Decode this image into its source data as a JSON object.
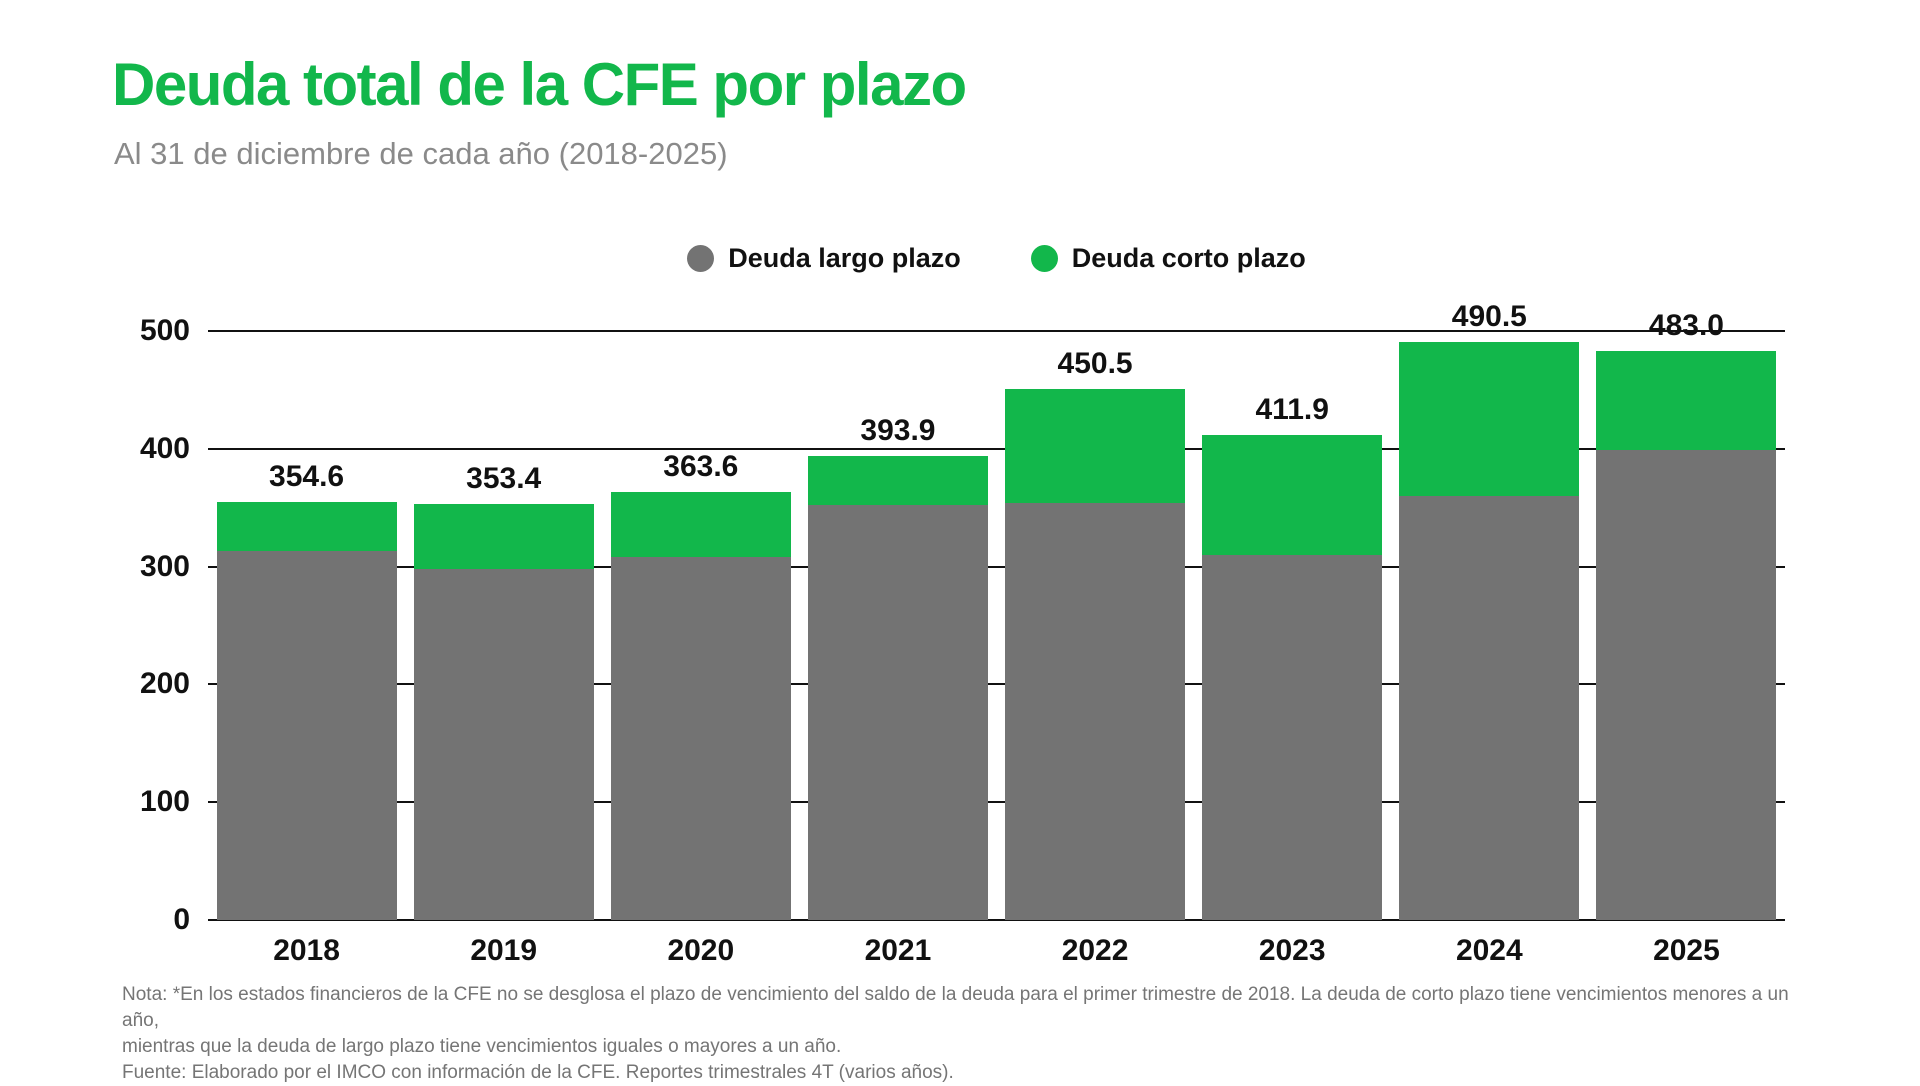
{
  "header": {
    "title": "Deuda total de la CFE por plazo",
    "subtitle": "Al 31 de diciembre de cada año (2018-2025)"
  },
  "legend": [
    {
      "label": "Deuda largo plazo",
      "color": "#737373"
    },
    {
      "label": "Deuda corto plazo",
      "color": "#12b74b"
    }
  ],
  "colors": {
    "background": "#ffffff",
    "title_green": "#12b74b",
    "bar_green": "#12b74b",
    "bar_gray": "#737373",
    "axis_black": "#111111",
    "subtitle_gray": "#8a8a8a",
    "footer_gray": "#757575"
  },
  "chart_data": {
    "type": "bar",
    "stacked": true,
    "title": "Deuda total de la CFE por plazo",
    "subtitle": "Al 31 de diciembre de cada año (2018-2025)",
    "categories": [
      "2018",
      "2019",
      "2020",
      "2021",
      "2022",
      "2023",
      "2024",
      "2025"
    ],
    "series": [
      {
        "name": "Deuda largo plazo",
        "color": "#737373",
        "values": [
          313.0,
          298.0,
          308.0,
          352.6,
          354.0,
          310.0,
          360.0,
          399.0
        ]
      },
      {
        "name": "Deuda corto plazo",
        "color": "#12b74b",
        "values": [
          41.6,
          55.4,
          55.6,
          41.3,
          96.5,
          101.9,
          130.5,
          84.0
        ]
      }
    ],
    "totals": [
      354.6,
      353.4,
      363.6,
      393.9,
      450.5,
      411.9,
      490.5,
      483.0
    ],
    "total_labels": [
      "354.6",
      "353.4",
      "363.6",
      "393.9",
      "450.5",
      "411.9",
      "490.5",
      "483.0"
    ],
    "xlabel": "",
    "ylabel": "",
    "ylim": [
      0,
      500
    ],
    "yticks": [
      0,
      100,
      200,
      300,
      400,
      500
    ],
    "grid": true,
    "legend_position": "top-center"
  },
  "footer": {
    "note_lines": [
      "Nota: *En los estados financieros de la CFE no se desglosa el plazo de vencimiento del saldo de la deuda para el primer trimestre de 2018. La deuda de corto plazo tiene vencimientos menores a un año,",
      "mientras que la deuda de largo plazo tiene vencimientos iguales o mayores a un año."
    ],
    "source": "Fuente: Elaborado por el IMCO con información de la CFE. Reportes trimestrales 4T (varios años)."
  }
}
